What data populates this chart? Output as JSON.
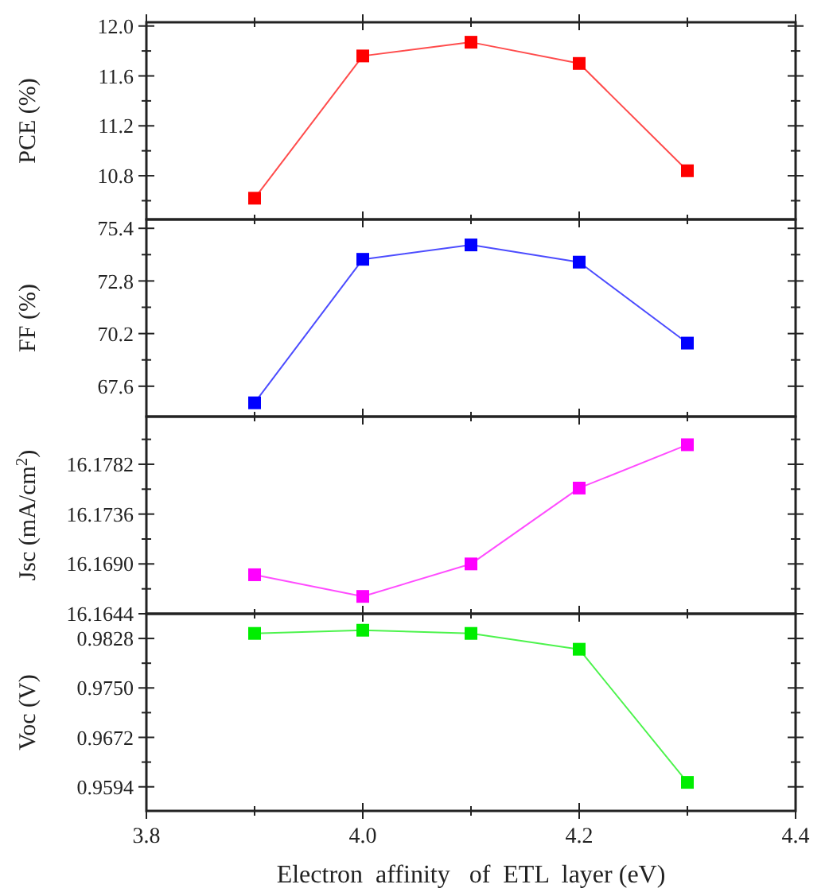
{
  "chart_data": [
    {
      "type": "line",
      "x": [
        3.9,
        4.0,
        4.1,
        4.2,
        4.3
      ],
      "series": [
        {
          "color": "#ff0000",
          "values": [
            10.62,
            11.76,
            11.87,
            11.7,
            10.84
          ]
        }
      ],
      "marker": "square",
      "ylabel": "PCE (%)",
      "xlim": [
        3.8,
        4.4
      ],
      "xticks": [
        3.8,
        {
          "value": 3.9,
          "label": null
        },
        4.0,
        {
          "value": 4.1,
          "label": null
        },
        4.2,
        {
          "value": 4.3,
          "label": null
        },
        4.4
      ],
      "ylim": [
        10.45,
        12.03
      ],
      "yticks": [
        {
          "value": 10.6,
          "label": null
        },
        10.8,
        {
          "value": 11.0,
          "label": null
        },
        11.2,
        {
          "value": 11.4,
          "label": null
        },
        11.6,
        {
          "value": 11.8,
          "label": null
        },
        "12.0"
      ],
      "tick_labels": "y"
    },
    {
      "type": "line",
      "x": [
        3.9,
        4.0,
        4.1,
        4.2,
        4.3
      ],
      "series": [
        {
          "color": "#0000ff",
          "values": [
            66.78,
            73.87,
            74.58,
            73.73,
            69.73
          ]
        }
      ],
      "marker": "square",
      "ylabel": "FF (%)",
      "xlim": [
        3.8,
        4.4
      ],
      "xticks": [
        3.8,
        {
          "value": 3.9,
          "label": null
        },
        4.0,
        {
          "value": 4.1,
          "label": null
        },
        4.2,
        {
          "value": 4.3,
          "label": null
        },
        4.4
      ],
      "ylim": [
        66.1,
        75.84
      ],
      "yticks": [
        67.6,
        {
          "value": 68.9,
          "label": null
        },
        70.2,
        {
          "value": 71.5,
          "label": null
        },
        72.8,
        {
          "value": 74.1,
          "label": null
        },
        75.4
      ],
      "tick_labels": "y"
    },
    {
      "type": "line",
      "x": [
        3.9,
        4.0,
        4.1,
        4.2,
        4.3
      ],
      "series": [
        {
          "color": "#ff00ff",
          "values": [
            16.168,
            16.166,
            16.169,
            16.176,
            16.18
          ]
        }
      ],
      "marker": "square",
      "ylabel": "Jsc (mA/cm$^{2}$)",
      "xlim": [
        3.8,
        4.4
      ],
      "xticks": [
        3.8,
        {
          "value": 3.9,
          "label": null
        },
        4.0,
        {
          "value": 4.1,
          "label": null
        },
        4.2,
        {
          "value": 4.3,
          "label": null
        },
        4.4
      ],
      "ylim": [
        16.1644,
        16.1826
      ],
      "yticks": [
        16.1644,
        {
          "value": 16.1667,
          "label": null
        },
        {
          "value": 16.169,
          "label": "16.1690"
        },
        {
          "value": 16.1713,
          "label": null
        },
        16.1736,
        {
          "value": 16.1759,
          "label": null
        },
        16.1782,
        {
          "value": 16.1805,
          "label": null
        }
      ],
      "tick_labels": "y"
    },
    {
      "type": "line",
      "x": [
        3.9,
        4.0,
        4.1,
        4.2,
        4.3
      ],
      "series": [
        {
          "color": "#00ee00",
          "values": [
            0.9836,
            0.9841,
            0.9836,
            0.9811,
            0.9601
          ]
        }
      ],
      "marker": "square",
      "ylabel": "Voc (V)",
      "xlabel": "Electron  affinity   of  ETL  layer (eV)",
      "xlim": [
        3.8,
        4.4
      ],
      "xticks": [
        3.8,
        {
          "value": 3.9,
          "label": null
        },
        "4.0",
        {
          "value": 4.1,
          "label": null
        },
        4.2,
        {
          "value": 4.3,
          "label": null
        },
        4.4
      ],
      "ylim": [
        0.9556,
        0.9867
      ],
      "yticks": [
        0.9594,
        {
          "value": 0.9633,
          "label": null
        },
        0.9672,
        {
          "value": 0.9711,
          "label": null
        },
        {
          "value": 0.975,
          "label": "0.9750"
        },
        {
          "value": 0.9789,
          "label": null
        },
        0.9828
      ]
    }
  ]
}
